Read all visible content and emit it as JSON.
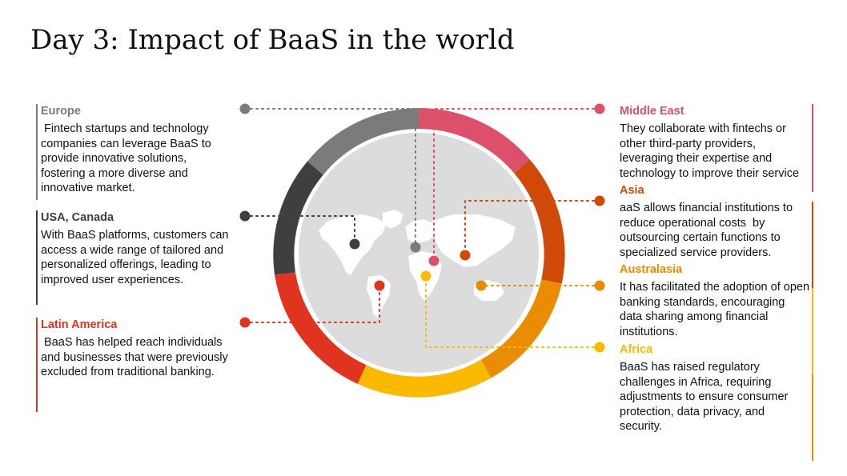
{
  "title": "Day 3: Impact of BaaS in the world",
  "regions": {
    "europe": {
      "name": "Europe",
      "text": " Fintech startups and technology companies can leverage BaaS to provide innovative solutions, fostering a more diverse and innovative market.",
      "color": "#7b7b7b"
    },
    "usa_canada": {
      "name": "USA, Canada",
      "text": "With BaaS platforms, customers can access a wide range of tailored and personalized offerings, leading to improved user experiences.",
      "color": "#3f3f3f"
    },
    "latin_america": {
      "name": "Latin America",
      "text": " BaaS has helped reach individuals and businesses that were previously excluded from traditional banking.",
      "color": "#e03320"
    },
    "middle_east": {
      "name": "Middle East",
      "text": "They collaborate with fintechs or other third-party providers, leveraging their expertise and technology to improve their service",
      "color": "#dc506a"
    },
    "asia": {
      "name": "Asia",
      "text": "aaS allows financial institutions to reduce operational costs  by outsourcing certain functions to specialized service providers.",
      "color": "#cf4a08"
    },
    "australasia": {
      "name": "Australasia",
      "text": "It has facilitated the adoption of open banking standards, encouraging data sharing among financial institutions.",
      "color": "#ea8c00"
    },
    "africa": {
      "name": "Africa",
      "text": "BaaS has raised regulatory challenges in Africa, requiring adjustments to ensure consumer protection, data privacy, and security.",
      "color": "#fbb900"
    }
  },
  "map_color": "#dcdcdc"
}
